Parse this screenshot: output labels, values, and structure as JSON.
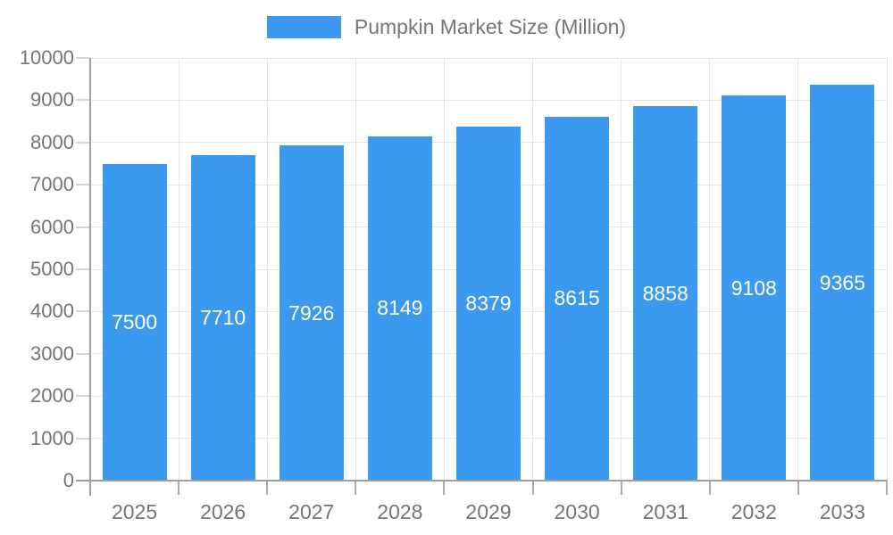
{
  "chart_data": {
    "type": "bar",
    "title": "",
    "legend": "Pumpkin Market Size (Million)",
    "legend_position": "top-center",
    "series_name": "Pumpkin Market Size (Million)",
    "categories": [
      "2025",
      "2026",
      "2027",
      "2028",
      "2029",
      "2030",
      "2031",
      "2032",
      "2033"
    ],
    "values": [
      7500,
      7710,
      7926,
      8149,
      8379,
      8615,
      8858,
      9108,
      9365
    ],
    "xlabel": "",
    "ylabel": "",
    "ylim": [
      0,
      10000
    ],
    "y_tick_step": 1000,
    "y_ticks": [
      0,
      1000,
      2000,
      3000,
      4000,
      5000,
      6000,
      7000,
      8000,
      9000,
      10000
    ],
    "grid": true,
    "value_labels": "inside-center"
  },
  "colors": {
    "bar": "#3B99F0",
    "axis_line": "#9E9E9E",
    "gridline": "#E6E6E6",
    "y_tick": "#D4D4D4",
    "x_tick": "#ADADAD",
    "axis_text": "#757575",
    "value_text": "#FFFFFF",
    "background": "#FFFFFF"
  }
}
